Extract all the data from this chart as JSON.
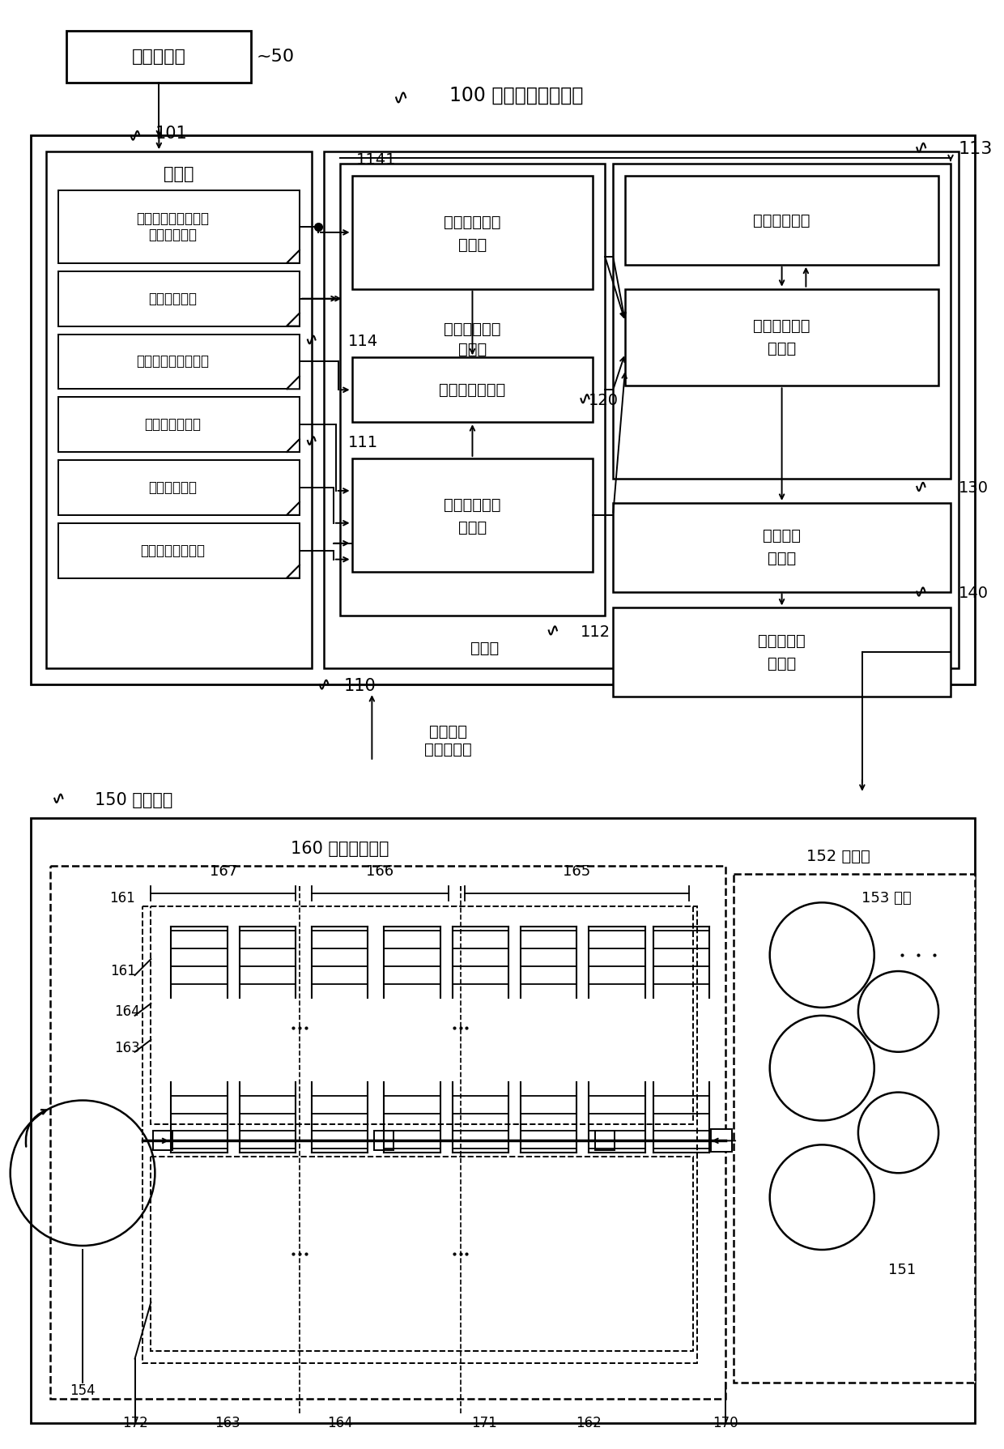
{
  "bg_color": "#ffffff",
  "upper_computer_label": "上位计算机",
  "num_50": "~50",
  "title_label": "100 卷取冷却控制装置",
  "storage_label": "存储部",
  "num_101": "101",
  "storage_items": [
    "轧机出口侧目标温度\n卷取目标温度",
    "钢板速度模式",
    "等温相变速度系数表",
    "相变开始条件表",
    "目标相体积比",
    "钢板化学成分数据"
  ],
  "processing_label": "处理部",
  "num_110": "110",
  "label_1141": "1141",
  "label_112": "112",
  "label_114": "114",
  "label_111": "111",
  "label_113": "113",
  "label_120": "120",
  "label_130": "130",
  "label_140": "140",
  "box_1141_text": [
    "钢板速度上限",
    "计算部"
  ],
  "box_112_text": [
    "钢板速度模式",
    "修正部"
  ],
  "box_114_text": "保持条件计算部",
  "box_111_text": [
    "相变开始条件",
    "计算部"
  ],
  "box_113_text": "板温度推定部",
  "box_120_text": [
    "目标温度履历",
    "计算部"
  ],
  "box_130_text": [
    "冷却指令",
    "计算部"
  ],
  "box_140_text": [
    "联管箱模式",
    "输出部"
  ],
  "speed_temp_label": "钢板速度\n卷取温度等",
  "label_150": "150 控制对象",
  "label_160": "160 卷取冷却装置",
  "label_152": "152 热轧机",
  "label_153": "153 轧机",
  "label_167": "167",
  "label_166": "166",
  "label_165": "165",
  "label_161": "161",
  "label_164": "164",
  "label_163": "163",
  "label_154": "154",
  "label_172": "172",
  "label_163b": "163",
  "label_164b": "164",
  "label_171": "171",
  "label_162": "162",
  "label_170": "170",
  "label_151": "151"
}
